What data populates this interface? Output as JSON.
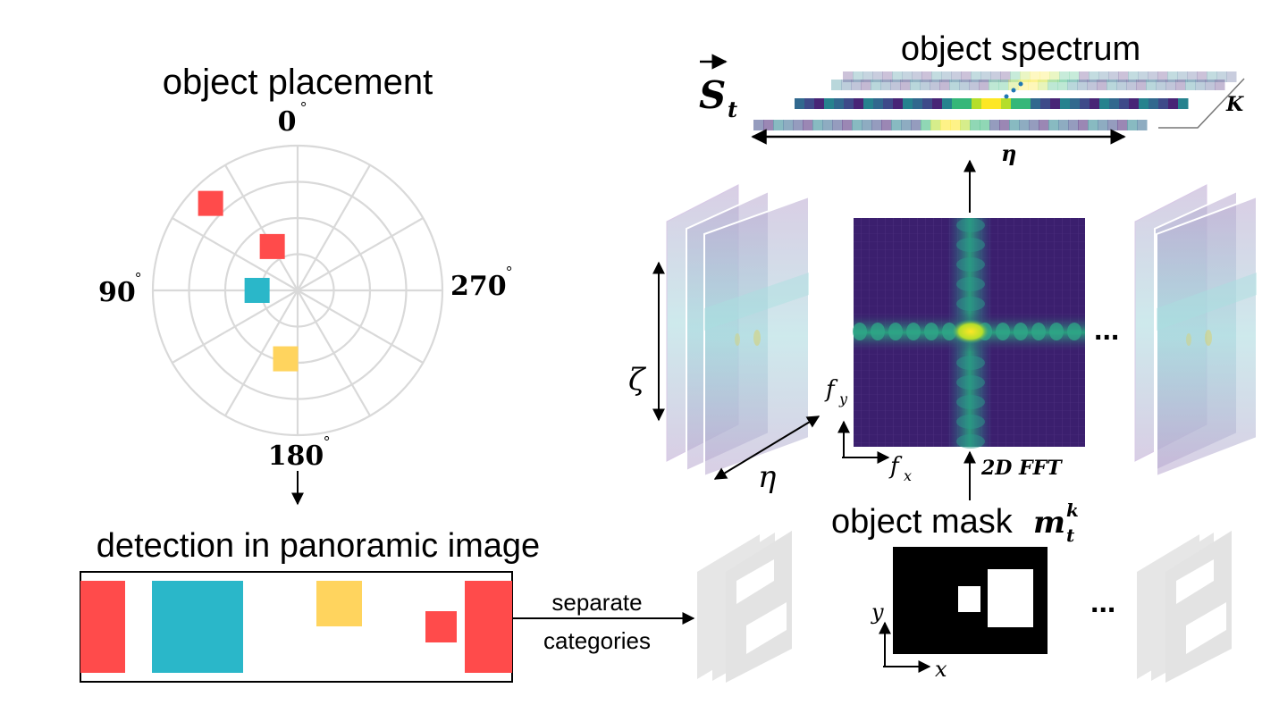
{
  "polar": {
    "title": "object placement",
    "angles": {
      "top": "0",
      "left": "90",
      "right": "270",
      "bottom": "180"
    },
    "degree_symbol": "°",
    "objects": [
      {
        "angle_deg": 45,
        "radius": 0.85,
        "color": "#FF4B4B"
      },
      {
        "angle_deg": 30,
        "radius": 0.35,
        "color": "#FF4B4B"
      },
      {
        "angle_deg": 90,
        "radius": 0.28,
        "color": "#2AB7C9"
      },
      {
        "angle_deg": 170,
        "radius": 0.48,
        "color": "#FFD45E"
      }
    ]
  },
  "detection": {
    "title": "detection in panoramic image"
  },
  "arrow_label": {
    "line1": "separate",
    "line2": "categories"
  },
  "mask": {
    "label_prefix": "object mask",
    "symbol": "m",
    "subscript": "t",
    "superscript": "k",
    "x_axis": "x",
    "y_axis": "y"
  },
  "fft": {
    "label": "2D FFT",
    "fx": "f",
    "fx_sub": "x",
    "fy": "f",
    "fy_sub": "y"
  },
  "stack": {
    "zeta": "ζ",
    "eta": "η",
    "ellipsis_right": "...",
    "ellipsis_bottom": "..."
  },
  "spectrum": {
    "title": "object spectrum",
    "symbol": "S",
    "subscript": "t",
    "eta": "η",
    "K": "K"
  },
  "colors": {
    "red": "#FF4B4B",
    "cyan": "#2AB7C9",
    "yellow": "#FFD45E",
    "viridis_dark": "#440154",
    "viridis_mid": "#21918C",
    "viridis_bright": "#FDE725",
    "grid": "#D9D9D9"
  }
}
